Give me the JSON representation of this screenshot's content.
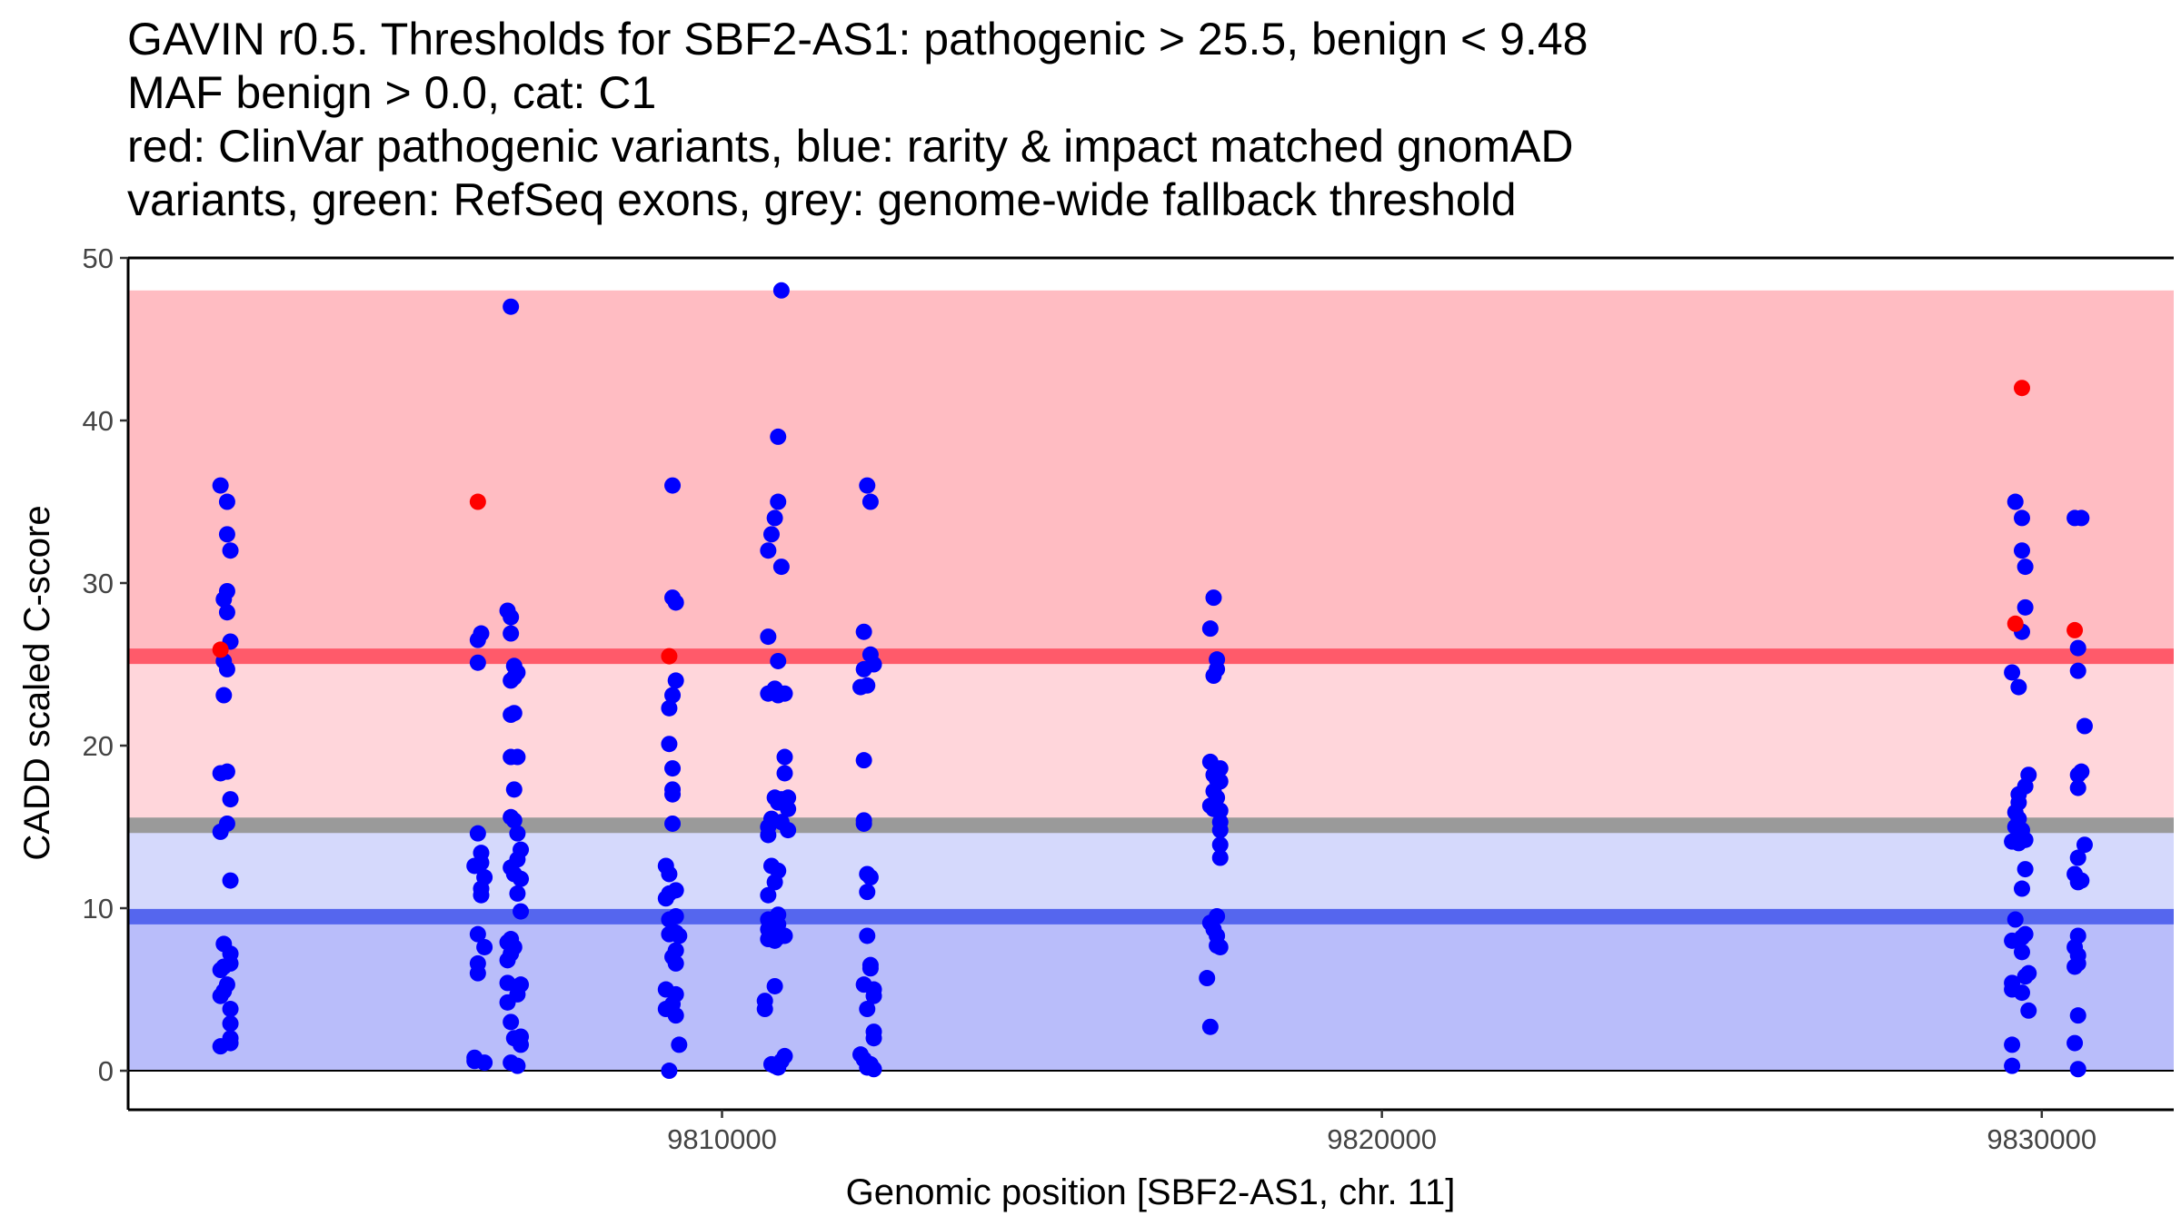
{
  "chart_data": {
    "type": "scatter",
    "title_lines": [
      "GAVIN r0.5. Thresholds for SBF2-AS1: pathogenic > 25.5, benign < 9.48",
      "MAF benign > 0.0, cat: C1",
      "red: ClinVar pathogenic variants, blue: rarity & impact matched gnomAD",
      "variants, green: RefSeq exons, grey: genome-wide fallback threshold"
    ],
    "xlabel": "Genomic position [SBF2-AS1, chr. 11]",
    "ylabel": "CADD scaled C-score",
    "xlim": [
      9801000,
      9832000
    ],
    "ylim": [
      -2.4,
      50
    ],
    "x_ticks": [
      {
        "value": 9810000,
        "label": "9810000"
      },
      {
        "value": 9820000,
        "label": "9820000"
      },
      {
        "value": 9830000,
        "label": "9830000"
      }
    ],
    "y_ticks": [
      {
        "value": 0,
        "label": "0"
      },
      {
        "value": 10,
        "label": "10"
      },
      {
        "value": 20,
        "label": "20"
      },
      {
        "value": 30,
        "label": "30"
      },
      {
        "value": 40,
        "label": "40"
      },
      {
        "value": 50,
        "label": "50"
      }
    ],
    "bands": [
      {
        "name": "pathogenic-zone",
        "ymin": 25.5,
        "ymax": 48,
        "color": "#ffbcc2"
      },
      {
        "name": "intermediate-zone",
        "ymin": 15.1,
        "ymax": 25.5,
        "color": "#ffd6db"
      },
      {
        "name": "intermediate-benign-zone",
        "ymin": 9.48,
        "ymax": 15.1,
        "color": "#d5d9fc"
      },
      {
        "name": "benign-zone",
        "ymin": 0,
        "ymax": 9.48,
        "color": "#b9bdfa"
      }
    ],
    "threshold_lines": [
      {
        "name": "pathogenic-threshold",
        "value": 25.5,
        "color": "#ff5a6a"
      },
      {
        "name": "fallback-threshold",
        "value": 15.1,
        "color": "#9a9a9a"
      },
      {
        "name": "benign-threshold",
        "value": 9.48,
        "color": "#5566ee"
      }
    ],
    "zero_line": 0,
    "series": [
      {
        "name": "ClinVar pathogenic variants",
        "color": "#ff0000",
        "points": [
          [
            9802400,
            25.9
          ],
          [
            9806300,
            35.0
          ],
          [
            9809200,
            25.5
          ],
          [
            9829600,
            27.5
          ],
          [
            9829700,
            42.0
          ],
          [
            9830500,
            27.1
          ]
        ]
      },
      {
        "name": "gnomAD matched variants",
        "color": "#0000ff",
        "points": [
          [
            9802400,
            36.0
          ],
          [
            9802500,
            35.0
          ],
          [
            9802500,
            33.0
          ],
          [
            9802550,
            32.0
          ],
          [
            9802500,
            29.5
          ],
          [
            9802450,
            29.0
          ],
          [
            9802500,
            28.2
          ],
          [
            9802550,
            26.4
          ],
          [
            9802450,
            25.2
          ],
          [
            9802500,
            24.7
          ],
          [
            9802450,
            23.1
          ],
          [
            9802400,
            18.3
          ],
          [
            9802500,
            18.4
          ],
          [
            9802550,
            16.7
          ],
          [
            9802500,
            15.2
          ],
          [
            9802400,
            14.7
          ],
          [
            9802550,
            11.7
          ],
          [
            9802450,
            7.8
          ],
          [
            9802550,
            7.2
          ],
          [
            9802550,
            6.6
          ],
          [
            9802450,
            6.4
          ],
          [
            9802400,
            6.2
          ],
          [
            9802500,
            5.3
          ],
          [
            9802450,
            4.9
          ],
          [
            9802400,
            4.6
          ],
          [
            9802550,
            3.8
          ],
          [
            9802550,
            2.9
          ],
          [
            9802550,
            2.0
          ],
          [
            9802550,
            1.7
          ],
          [
            9802400,
            1.5
          ],
          [
            9806350,
            26.9
          ],
          [
            9806300,
            26.5
          ],
          [
            9806300,
            25.1
          ],
          [
            9806300,
            14.6
          ],
          [
            9806350,
            13.4
          ],
          [
            9806350,
            12.8
          ],
          [
            9806250,
            12.6
          ],
          [
            9806400,
            11.9
          ],
          [
            9806350,
            11.2
          ],
          [
            9806350,
            10.8
          ],
          [
            9806300,
            8.4
          ],
          [
            9806400,
            7.6
          ],
          [
            9806300,
            6.6
          ],
          [
            9806300,
            6.0
          ],
          [
            9806250,
            0.8
          ],
          [
            9806250,
            0.6
          ],
          [
            9806400,
            0.5
          ],
          [
            9806800,
            47.0
          ],
          [
            9806750,
            28.3
          ],
          [
            9806800,
            27.9
          ],
          [
            9806800,
            26.9
          ],
          [
            9806850,
            24.9
          ],
          [
            9806900,
            24.5
          ],
          [
            9806850,
            24.2
          ],
          [
            9806800,
            24.0
          ],
          [
            9806850,
            22.0
          ],
          [
            9806800,
            21.9
          ],
          [
            9806900,
            19.3
          ],
          [
            9806800,
            19.3
          ],
          [
            9806850,
            17.3
          ],
          [
            9806800,
            15.6
          ],
          [
            9806850,
            15.4
          ],
          [
            9806900,
            14.6
          ],
          [
            9806950,
            13.6
          ],
          [
            9806900,
            13.0
          ],
          [
            9806800,
            12.5
          ],
          [
            9806850,
            12.1
          ],
          [
            9806950,
            11.8
          ],
          [
            9806900,
            10.9
          ],
          [
            9806950,
            9.8
          ],
          [
            9806800,
            8.1
          ],
          [
            9806750,
            7.9
          ],
          [
            9806850,
            7.6
          ],
          [
            9806800,
            7.2
          ],
          [
            9806750,
            6.8
          ],
          [
            9806750,
            5.4
          ],
          [
            9806950,
            5.3
          ],
          [
            9806900,
            4.7
          ],
          [
            9806750,
            4.2
          ],
          [
            9806800,
            3.0
          ],
          [
            9806950,
            2.1
          ],
          [
            9806850,
            2.0
          ],
          [
            9806950,
            1.6
          ],
          [
            9806800,
            0.5
          ],
          [
            9806900,
            0.3
          ],
          [
            9809250,
            36.0
          ],
          [
            9809250,
            29.1
          ],
          [
            9809300,
            28.8
          ],
          [
            9809300,
            24.0
          ],
          [
            9809250,
            23.1
          ],
          [
            9809200,
            22.3
          ],
          [
            9809200,
            20.1
          ],
          [
            9809250,
            18.6
          ],
          [
            9809250,
            17.3
          ],
          [
            9809250,
            17.0
          ],
          [
            9809250,
            15.2
          ],
          [
            9809150,
            12.6
          ],
          [
            9809200,
            12.1
          ],
          [
            9809300,
            11.1
          ],
          [
            9809200,
            10.9
          ],
          [
            9809150,
            10.6
          ],
          [
            9809300,
            9.5
          ],
          [
            9809200,
            9.3
          ],
          [
            9809300,
            8.5
          ],
          [
            9809200,
            8.4
          ],
          [
            9809350,
            8.3
          ],
          [
            9809300,
            7.4
          ],
          [
            9809250,
            7.0
          ],
          [
            9809300,
            6.6
          ],
          [
            9809150,
            5.0
          ],
          [
            9809300,
            4.7
          ],
          [
            9809250,
            4.1
          ],
          [
            9809150,
            3.8
          ],
          [
            9809300,
            3.4
          ],
          [
            9809350,
            1.6
          ],
          [
            9809200,
            0.0
          ],
          [
            9810900,
            48.0
          ],
          [
            9810850,
            39.0
          ],
          [
            9810850,
            35.0
          ],
          [
            9810800,
            34.0
          ],
          [
            9810750,
            33.0
          ],
          [
            9810700,
            32.0
          ],
          [
            9810900,
            31.0
          ],
          [
            9810700,
            26.7
          ],
          [
            9810850,
            25.2
          ],
          [
            9810800,
            23.5
          ],
          [
            9810700,
            23.2
          ],
          [
            9810850,
            23.1
          ],
          [
            9810950,
            23.2
          ],
          [
            9810950,
            19.3
          ],
          [
            9810950,
            18.3
          ],
          [
            9810800,
            16.8
          ],
          [
            9810900,
            16.7
          ],
          [
            9810850,
            16.5
          ],
          [
            9811000,
            16.8
          ],
          [
            9811000,
            16.1
          ],
          [
            9810750,
            15.5
          ],
          [
            9810900,
            15.3
          ],
          [
            9810700,
            15.0
          ],
          [
            9811000,
            14.8
          ],
          [
            9810700,
            14.5
          ],
          [
            9810750,
            12.6
          ],
          [
            9810850,
            12.3
          ],
          [
            9810800,
            11.6
          ],
          [
            9810700,
            10.8
          ],
          [
            9810850,
            9.6
          ],
          [
            9810700,
            9.3
          ],
          [
            9810800,
            9.2
          ],
          [
            9810850,
            9.0
          ],
          [
            9810700,
            8.7
          ],
          [
            9810850,
            8.2
          ],
          [
            9810700,
            8.1
          ],
          [
            9810800,
            8.0
          ],
          [
            9810950,
            8.3
          ],
          [
            9810800,
            5.2
          ],
          [
            9810650,
            4.3
          ],
          [
            9810650,
            3.8
          ],
          [
            9810950,
            0.9
          ],
          [
            9810900,
            0.6
          ],
          [
            9810750,
            0.4
          ],
          [
            9810800,
            0.3
          ],
          [
            9810850,
            0.2
          ],
          [
            9812200,
            36.0
          ],
          [
            9812250,
            35.0
          ],
          [
            9812150,
            27.0
          ],
          [
            9812250,
            25.6
          ],
          [
            9812300,
            25.0
          ],
          [
            9812150,
            24.7
          ],
          [
            9812200,
            23.7
          ],
          [
            9812100,
            23.6
          ],
          [
            9812150,
            19.1
          ],
          [
            9812150,
            15.4
          ],
          [
            9812150,
            15.2
          ],
          [
            9812200,
            12.1
          ],
          [
            9812250,
            11.9
          ],
          [
            9812200,
            11.0
          ],
          [
            9812200,
            8.3
          ],
          [
            9812250,
            6.5
          ],
          [
            9812250,
            6.3
          ],
          [
            9812150,
            5.3
          ],
          [
            9812300,
            5.0
          ],
          [
            9812300,
            4.6
          ],
          [
            9812200,
            3.8
          ],
          [
            9812300,
            2.4
          ],
          [
            9812300,
            2.0
          ],
          [
            9812100,
            1.0
          ],
          [
            9812150,
            0.7
          ],
          [
            9812250,
            0.4
          ],
          [
            9812200,
            0.2
          ],
          [
            9812300,
            0.1
          ],
          [
            9817450,
            29.1
          ],
          [
            9817400,
            27.2
          ],
          [
            9817500,
            25.3
          ],
          [
            9817500,
            24.7
          ],
          [
            9817450,
            24.3
          ],
          [
            9817400,
            19.0
          ],
          [
            9817550,
            18.6
          ],
          [
            9817450,
            18.2
          ],
          [
            9817500,
            17.9
          ],
          [
            9817550,
            17.8
          ],
          [
            9817450,
            17.2
          ],
          [
            9817500,
            16.8
          ],
          [
            9817400,
            16.3
          ],
          [
            9817450,
            16.1
          ],
          [
            9817550,
            16.0
          ],
          [
            9817550,
            15.3
          ],
          [
            9817550,
            14.8
          ],
          [
            9817550,
            13.9
          ],
          [
            9817550,
            13.1
          ],
          [
            9817500,
            9.5
          ],
          [
            9817400,
            9.1
          ],
          [
            9817450,
            8.7
          ],
          [
            9817500,
            8.3
          ],
          [
            9817500,
            7.7
          ],
          [
            9817550,
            7.6
          ],
          [
            9817350,
            5.7
          ],
          [
            9817400,
            2.7
          ],
          [
            9829600,
            35.0
          ],
          [
            9829700,
            34.0
          ],
          [
            9829700,
            32.0
          ],
          [
            9829750,
            31.0
          ],
          [
            9829750,
            28.5
          ],
          [
            9829700,
            27.0
          ],
          [
            9829550,
            24.5
          ],
          [
            9829650,
            23.6
          ],
          [
            9829800,
            18.2
          ],
          [
            9829750,
            17.5
          ],
          [
            9829650,
            17.0
          ],
          [
            9829650,
            16.5
          ],
          [
            9829600,
            15.9
          ],
          [
            9829650,
            15.5
          ],
          [
            9829600,
            15.0
          ],
          [
            9829700,
            14.8
          ],
          [
            9829650,
            14.5
          ],
          [
            9829750,
            14.2
          ],
          [
            9829550,
            14.1
          ],
          [
            9829650,
            14.0
          ],
          [
            9829750,
            12.4
          ],
          [
            9829700,
            11.2
          ],
          [
            9829600,
            9.3
          ],
          [
            9829750,
            8.4
          ],
          [
            9829700,
            8.2
          ],
          [
            9829550,
            8.0
          ],
          [
            9829700,
            7.3
          ],
          [
            9829800,
            6.0
          ],
          [
            9829750,
            5.8
          ],
          [
            9829550,
            5.4
          ],
          [
            9829550,
            5.0
          ],
          [
            9829700,
            4.8
          ],
          [
            9829800,
            3.7
          ],
          [
            9829550,
            1.6
          ],
          [
            9829550,
            0.3
          ],
          [
            9830500,
            34.0
          ],
          [
            9830600,
            34.0
          ],
          [
            9830550,
            26.0
          ],
          [
            9830550,
            24.6
          ],
          [
            9830650,
            21.2
          ],
          [
            9830600,
            18.4
          ],
          [
            9830550,
            18.2
          ],
          [
            9830550,
            17.4
          ],
          [
            9830650,
            13.9
          ],
          [
            9830550,
            13.1
          ],
          [
            9830500,
            12.1
          ],
          [
            9830600,
            11.7
          ],
          [
            9830550,
            11.6
          ],
          [
            9830550,
            8.3
          ],
          [
            9830500,
            7.6
          ],
          [
            9830550,
            7.1
          ],
          [
            9830550,
            6.6
          ],
          [
            9830500,
            6.4
          ],
          [
            9830550,
            3.4
          ],
          [
            9830500,
            1.7
          ],
          [
            9830550,
            0.1
          ]
        ]
      }
    ]
  }
}
